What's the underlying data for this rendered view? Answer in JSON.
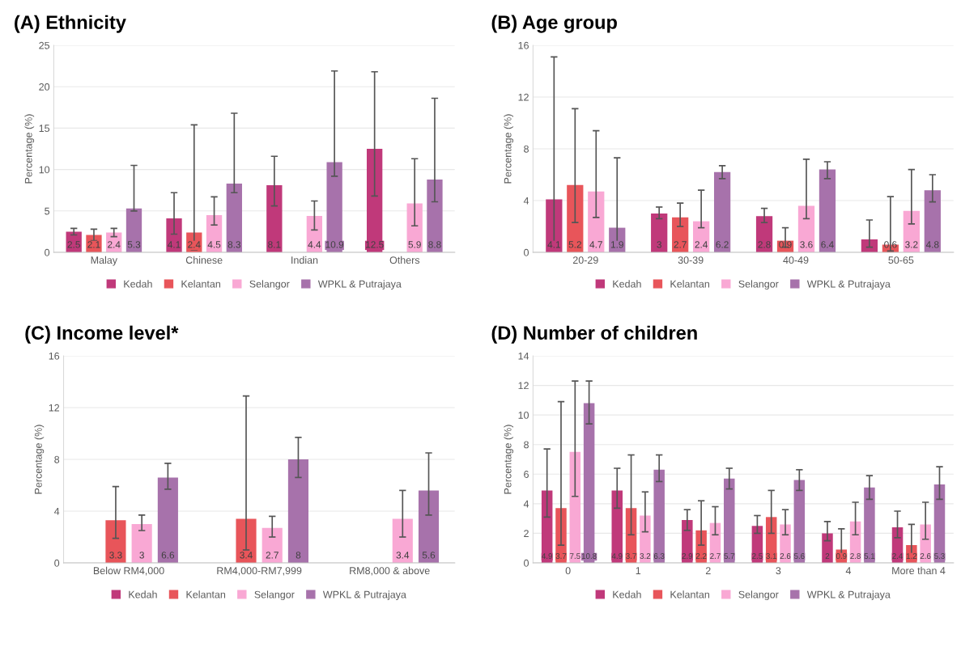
{
  "chart_data": [
    {
      "type": "bar",
      "title": "(A) Ethnicity",
      "ylabel": "Percentage (%)",
      "categories": [
        "Malay",
        "Chinese",
        "Indian",
        "Others"
      ],
      "ylim": [
        0,
        25
      ],
      "yticks": [
        0,
        5,
        10,
        15,
        20,
        25
      ],
      "grid": "y",
      "legend": "bottom",
      "data_labels": true,
      "series": [
        {
          "name": "Kedah",
          "color": "#c0397a",
          "values": [
            2.5,
            4.1,
            8.1,
            12.5
          ],
          "errors": [
            [
              2.1,
              2.9
            ],
            [
              2.2,
              7.2
            ],
            [
              5.6,
              11.6
            ],
            [
              6.8,
              21.8
            ]
          ]
        },
        {
          "name": "Kelantan",
          "color": "#e8555a",
          "values": [
            2.1,
            2.4,
            null,
            null
          ],
          "errors": [
            [
              1.4,
              2.8
            ],
            [
              0.3,
              15.4
            ],
            null,
            null
          ]
        },
        {
          "name": "Selangor",
          "color": "#f9a8d4",
          "values": [
            2.4,
            4.5,
            4.4,
            5.9
          ],
          "errors": [
            [
              1.9,
              2.9
            ],
            [
              3.3,
              6.7
            ],
            [
              2.7,
              6.2
            ],
            [
              3.2,
              11.3
            ]
          ]
        },
        {
          "name": "WPKL & Putrajaya",
          "color": "#a772ab",
          "values": [
            5.3,
            8.3,
            10.9,
            8.8
          ],
          "errors": [
            [
              5.0,
              10.5
            ],
            [
              7.2,
              16.8
            ],
            [
              9.2,
              21.9
            ],
            [
              6.1,
              18.6
            ]
          ]
        }
      ]
    },
    {
      "type": "bar",
      "title": "(B) Age group",
      "ylabel": "Percentage (%)",
      "categories": [
        "20-29",
        "30-39",
        "40-49",
        "50-65"
      ],
      "ylim": [
        0,
        16
      ],
      "yticks": [
        0,
        4,
        8,
        12,
        16
      ],
      "grid": "y",
      "legend": "bottom",
      "series": [
        {
          "name": "Kedah",
          "color": "#c0397a",
          "values": [
            4.1,
            3,
            2.8,
            1
          ],
          "value_labels": [
            "4.1",
            "3",
            "2.8",
            null
          ],
          "errors": [
            [
              0.6,
              15.1
            ],
            [
              2.6,
              3.5
            ],
            [
              2.3,
              3.4
            ],
            [
              0.4,
              2.5
            ]
          ]
        },
        {
          "name": "Kelantan",
          "color": "#e8555a",
          "values": [
            5.2,
            2.7,
            0.9,
            0.6
          ],
          "value_labels": [
            "5.2",
            "2.7",
            "0.9",
            "0.6"
          ],
          "errors": [
            [
              2.3,
              11.1
            ],
            [
              2.0,
              3.8
            ],
            [
              0.4,
              1.9
            ],
            [
              0.1,
              4.3
            ]
          ]
        },
        {
          "name": "Selangor",
          "color": "#f9a8d4",
          "values": [
            4.7,
            2.4,
            3.6,
            3.2
          ],
          "value_labels": [
            "4.7",
            "2.4",
            "3.6",
            "3.2"
          ],
          "errors": [
            [
              2.7,
              9.4
            ],
            [
              1.9,
              4.8
            ],
            [
              2.6,
              7.2
            ],
            [
              2.2,
              6.4
            ]
          ]
        },
        {
          "name": "WPKL & Putrajaya",
          "color": "#a772ab",
          "values": [
            1.9,
            6.2,
            6.4,
            4.8
          ],
          "value_labels": [
            "1.9",
            "6.2",
            "6.4",
            "4.8"
          ],
          "errors": [
            [
              0.5,
              7.3
            ],
            [
              5.7,
              6.7
            ],
            [
              5.7,
              7.0
            ],
            [
              3.9,
              6.0
            ]
          ]
        }
      ]
    },
    {
      "type": "bar",
      "title": "(C) Income level*",
      "ylabel": "Percentage (%)",
      "categories": [
        "Below RM4,000",
        "RM4,000-RM7,999",
        "RM8,000 & above"
      ],
      "ylim": [
        0,
        16
      ],
      "yticks": [
        0,
        4,
        8,
        12,
        16
      ],
      "grid": "y",
      "legend": "bottom",
      "data_labels": true,
      "series": [
        {
          "name": "Kedah",
          "color": "#c0397a",
          "values": [
            null,
            null,
            null
          ],
          "errors": [
            null,
            null,
            null
          ]
        },
        {
          "name": "Kelantan",
          "color": "#e8555a",
          "values": [
            3.3,
            3.4,
            null
          ],
          "errors": [
            [
              1.9,
              5.9
            ],
            [
              1.0,
              12.9
            ],
            null
          ]
        },
        {
          "name": "Selangor",
          "color": "#f9a8d4",
          "values": [
            3,
            2.7,
            3.4
          ],
          "errors": [
            [
              2.5,
              3.7
            ],
            [
              2.0,
              3.6
            ],
            [
              2.0,
              5.6
            ]
          ]
        },
        {
          "name": "WPKL & Putrajaya",
          "color": "#a772ab",
          "values": [
            6.6,
            8,
            5.6
          ],
          "errors": [
            [
              5.7,
              7.7
            ],
            [
              6.6,
              9.7
            ],
            [
              3.7,
              8.5
            ]
          ]
        }
      ]
    },
    {
      "type": "bar",
      "title": "(D) Number of children",
      "ylabel": "Percentage (%)",
      "categories": [
        "0",
        "1",
        "2",
        "3",
        "4",
        "More than 4"
      ],
      "ylim": [
        0,
        14
      ],
      "yticks": [
        0,
        2,
        4,
        6,
        8,
        10,
        12,
        14
      ],
      "grid": "y",
      "legend": "bottom",
      "data_labels": true,
      "series": [
        {
          "name": "Kedah",
          "color": "#c0397a",
          "values": [
            4.9,
            4.9,
            2.9,
            2.5,
            2,
            2.4
          ],
          "errors": [
            [
              3.1,
              7.7
            ],
            [
              3.7,
              6.4
            ],
            [
              2.2,
              3.6
            ],
            [
              2.0,
              3.2
            ],
            [
              1.5,
              2.8
            ],
            [
              1.7,
              3.5
            ]
          ]
        },
        {
          "name": "Kelantan",
          "color": "#e8555a",
          "values": [
            3.7,
            3.7,
            2.2,
            3.1,
            0.9,
            1.2
          ],
          "errors": [
            [
              1.2,
              10.9
            ],
            [
              1.9,
              7.3
            ],
            [
              1.2,
              4.2
            ],
            [
              2.0,
              4.9
            ],
            [
              0.4,
              2.3
            ],
            [
              0.5,
              2.6
            ]
          ]
        },
        {
          "name": "Selangor",
          "color": "#f9a8d4",
          "values": [
            7.5,
            3.2,
            2.7,
            2.6,
            2.8,
            2.6
          ],
          "errors": [
            [
              4.5,
              12.3
            ],
            [
              2.1,
              4.8
            ],
            [
              1.9,
              3.8
            ],
            [
              1.9,
              3.6
            ],
            [
              1.9,
              4.1
            ],
            [
              1.6,
              4.1
            ]
          ]
        },
        {
          "name": "WPKL & Putrajaya",
          "color": "#a772ab",
          "values": [
            10.8,
            6.3,
            5.7,
            5.6,
            5.1,
            5.3
          ],
          "errors": [
            [
              9.4,
              12.3
            ],
            [
              5.5,
              7.3
            ],
            [
              5.0,
              6.4
            ],
            [
              4.9,
              6.3
            ],
            [
              4.3,
              5.9
            ],
            [
              4.3,
              6.5
            ]
          ]
        }
      ]
    }
  ]
}
